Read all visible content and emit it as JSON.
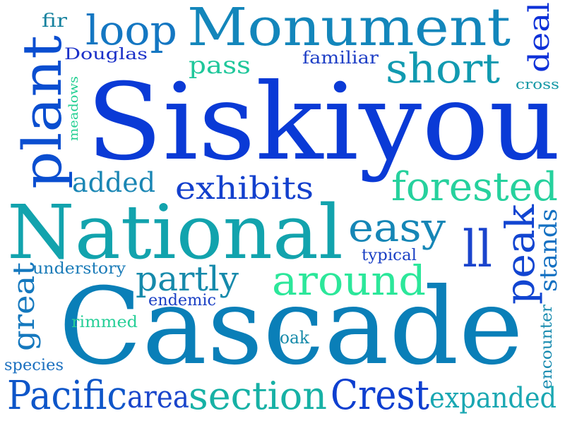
{
  "words": [
    {
      "text": "Siskiyou",
      "color": "#0a3ad6"
    },
    {
      "text": "Cascade",
      "color": "#0a7fb8"
    },
    {
      "text": "National",
      "color": "#12a3ad"
    },
    {
      "text": "Monument",
      "color": "#1386bb"
    },
    {
      "text": "plant",
      "color": "#0a4ed0"
    },
    {
      "text": "short",
      "color": "#119ab0"
    },
    {
      "text": "loop",
      "color": "#1477c2"
    },
    {
      "text": "deal",
      "color": "#0e31d8"
    },
    {
      "text": "fir",
      "color": "#17829f"
    },
    {
      "text": "Douglas",
      "color": "#1a2fc8"
    },
    {
      "text": "pass",
      "color": "#20c79b"
    },
    {
      "text": "familiar",
      "color": "#1e3fc6"
    },
    {
      "text": "cross",
      "color": "#1699a6"
    },
    {
      "text": "meadows",
      "color": "#23cf92"
    },
    {
      "text": "added",
      "color": "#1a86b4"
    },
    {
      "text": "exhibits",
      "color": "#1340cd"
    },
    {
      "text": "forested",
      "color": "#26d19d"
    },
    {
      "text": "easy",
      "color": "#1586b6"
    },
    {
      "text": "ll",
      "color": "#1a44cd"
    },
    {
      "text": "peak",
      "color": "#1245d1"
    },
    {
      "text": "stands",
      "color": "#1370c2"
    },
    {
      "text": "typical",
      "color": "#1a3fc4"
    },
    {
      "text": "understory",
      "color": "#1a7bb8"
    },
    {
      "text": "partly",
      "color": "#168aab"
    },
    {
      "text": "around",
      "color": "#2ce79a"
    },
    {
      "text": "great",
      "color": "#1478be"
    },
    {
      "text": "endemic",
      "color": "#1a3fc4"
    },
    {
      "text": "rimmed",
      "color": "#28cf98"
    },
    {
      "text": "oak",
      "color": "#168aa9"
    },
    {
      "text": "encounter",
      "color": "#1a8cb0"
    },
    {
      "text": "species",
      "color": "#1a6fbf"
    },
    {
      "text": "Pacific",
      "color": "#0e56c9"
    },
    {
      "text": "area",
      "color": "#1a45cb"
    },
    {
      "text": "section",
      "color": "#17b1a5"
    },
    {
      "text": "Crest",
      "color": "#0e3fd0"
    },
    {
      "text": "expanded",
      "color": "#1aa7b2"
    }
  ]
}
